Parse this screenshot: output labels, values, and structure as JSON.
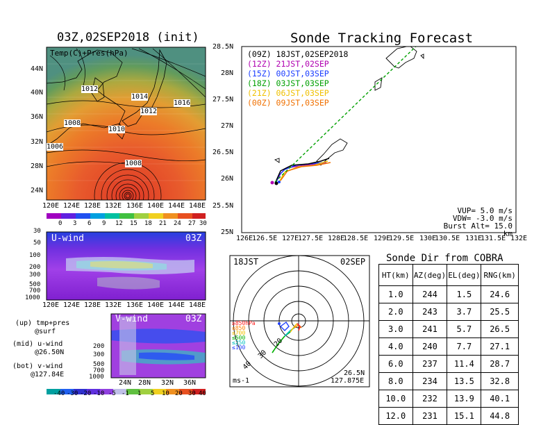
{
  "map_panel": {
    "title": "03Z,02SEP2018 (init)",
    "label": "Temp(C)+Pres(hPa)",
    "x_ticks": [
      "120E",
      "124E",
      "128E",
      "132E",
      "136E",
      "140E",
      "144E",
      "148E"
    ],
    "y_ticks": [
      "44N",
      "40N",
      "36N",
      "32N",
      "28N",
      "24N"
    ],
    "pressure_labels": [
      "1012",
      "1014",
      "1016",
      "1012",
      "1008",
      "1010",
      "1006",
      "1008"
    ],
    "colorbar_ticks": [
      "0",
      "3",
      "6",
      "9",
      "12",
      "15",
      "18",
      "21",
      "24",
      "27",
      "30"
    ]
  },
  "uwind_panel": {
    "label": "U-wind",
    "time": "03Z",
    "y_ticks": [
      "30",
      "50",
      "100",
      "200",
      "300",
      "500",
      "700",
      "1000"
    ],
    "x_ticks": [
      "120E",
      "124E",
      "128E",
      "132E",
      "136E",
      "140E",
      "144E",
      "148E"
    ]
  },
  "vwind_panel": {
    "label": "V-wind",
    "time": "03Z",
    "y_ticks": [
      "200",
      "300",
      "500",
      "700",
      "1000"
    ],
    "x_ticks": [
      "24N",
      "28N",
      "32N",
      "36N"
    ]
  },
  "notes": {
    "up": "(up) tmp+pres",
    "up2": "@surf",
    "mid": "(mid) u-wind",
    "mid2": "@26.50N",
    "bot": "(bot) v-wind",
    "bot2": "@127.84E"
  },
  "wind_colorbar_ticks": [
    "-40",
    "-30",
    "-20",
    "-10",
    "-5",
    "-1",
    "1",
    "5",
    "10",
    "20",
    "30",
    "40"
  ],
  "tracking": {
    "title": "Sonde Tracking Forecast",
    "x_ticks": [
      "126E",
      "126.5E",
      "127E",
      "127.5E",
      "128E",
      "128.5E",
      "129E",
      "129.5E",
      "130E",
      "130.5E",
      "131E",
      "131.5E",
      "132E"
    ],
    "y_ticks": [
      "28.5N",
      "28N",
      "27.5N",
      "27N",
      "26.5N",
      "26N",
      "25.5N",
      "25N"
    ],
    "legend": [
      {
        "text": "(09Z) 18JST,02SEP2018",
        "color": "#000000"
      },
      {
        "text": "(12Z) 21JST,02SEP",
        "color": "#b000b0"
      },
      {
        "text": "(15Z) 00JST,03SEP",
        "color": "#1a3cff"
      },
      {
        "text": "(18Z) 03JST,03SEP",
        "color": "#00a000"
      },
      {
        "text": "(21Z) 06JST,03SEP",
        "color": "#f0c000"
      },
      {
        "text": "(00Z) 09JST,03SEP",
        "color": "#f07000"
      }
    ],
    "params": [
      "VUP= 5.0 m/s",
      "VDW= -3.0 m/s",
      "Burst Alt= 15.0 km"
    ]
  },
  "polar": {
    "time_left": "18JST",
    "date_right": "02SEP",
    "unit": "ms-1",
    "lat": "26.5N",
    "lon": "127.875E",
    "ring_labels": [
      "20",
      "30",
      "40"
    ],
    "level_labels": [
      {
        "text": "≥850hPa",
        "color": "#ff2020"
      },
      {
        "text": "≤850",
        "color": "#ff8000"
      },
      {
        "text": "≤700",
        "color": "#f0c000"
      },
      {
        "text": "≤500",
        "color": "#00b000"
      },
      {
        "text": "≤250",
        "color": "#00c0c0"
      },
      {
        "text": "≤100",
        "color": "#2040ff"
      }
    ]
  },
  "sonde_table": {
    "title": "Sonde Dir from COBRA",
    "headers": [
      "HT(km)",
      "AZ(deg)",
      "EL(deg)",
      "RNG(km)"
    ],
    "rows": [
      [
        "1.0",
        "244",
        "1.5",
        "24.6"
      ],
      [
        "2.0",
        "243",
        "3.7",
        "25.5"
      ],
      [
        "3.0",
        "241",
        "5.7",
        "26.5"
      ],
      [
        "4.0",
        "240",
        "7.7",
        "27.1"
      ],
      [
        "6.0",
        "237",
        "11.4",
        "28.7"
      ],
      [
        "8.0",
        "234",
        "13.5",
        "32.8"
      ],
      [
        "10.0",
        "232",
        "13.9",
        "40.1"
      ],
      [
        "12.0",
        "231",
        "15.1",
        "44.8"
      ]
    ]
  }
}
